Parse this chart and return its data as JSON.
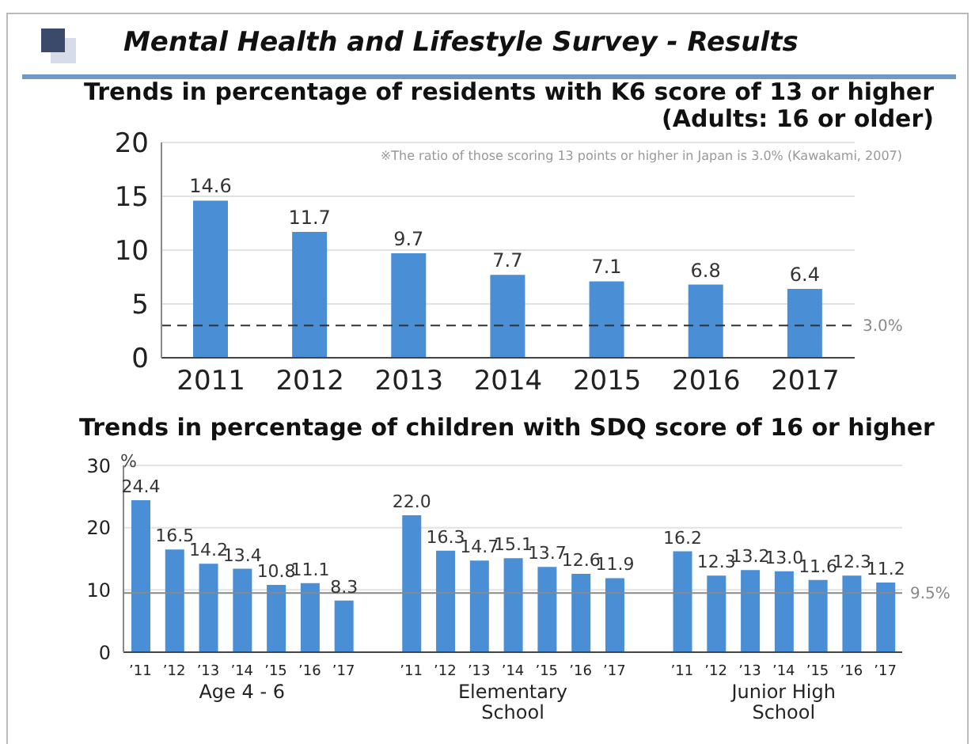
{
  "chart_data": [
    {
      "type": "bar",
      "title": "Mental Health and Lifestyle Survey - Results",
      "subtitle": "Trends in percentage of residents with K6 score of 13 or higher (Adults: 16 or older)",
      "categories": [
        "2011",
        "2012",
        "2013",
        "2014",
        "2015",
        "2016",
        "2017"
      ],
      "values": [
        14.6,
        11.7,
        9.7,
        7.7,
        7.1,
        6.8,
        6.4
      ],
      "color": "#4a8fd6",
      "ylim": [
        0,
        20
      ],
      "yticks": [
        0,
        5,
        10,
        15,
        20
      ],
      "grid": "y",
      "data_labels": true,
      "ref_lines": [
        {
          "axis": "y",
          "value": 3.0,
          "label": "3.0%",
          "color": "#333333",
          "line_style": "dashed"
        }
      ],
      "annotations": [
        "※The ratio of those scoring 13 points or higher in Japan is 3.0% (Kawakami, 2007)"
      ]
    },
    {
      "type": "bar",
      "title": "Trends in percentage of children with SDQ score of 16 or higher",
      "ylabel": "%",
      "categories": [
        "’11",
        "’12",
        "’13",
        "’14",
        "’15",
        "’16",
        "’17",
        null,
        "’11",
        "’12",
        "’13",
        "’14",
        "’15",
        "’16",
        "’17",
        null,
        "’11",
        "’12",
        "’13",
        "’14",
        "’15",
        "’16",
        "’17"
      ],
      "values": [
        24.4,
        16.5,
        14.2,
        13.4,
        10.8,
        11.1,
        8.3,
        null,
        22.0,
        16.3,
        14.7,
        15.1,
        13.7,
        12.6,
        11.9,
        null,
        16.2,
        12.3,
        13.2,
        13.0,
        11.6,
        12.3,
        11.2
      ],
      "color": "#4a8fd6",
      "ylim": [
        0,
        30
      ],
      "yticks": [
        0,
        10,
        20,
        30
      ],
      "grid": "y",
      "value_labels": [
        "24.4",
        "16.5",
        "14.2",
        "13.4",
        "10.8",
        "11.1",
        "8.3",
        null,
        "22.0",
        "16.3",
        "14.7",
        "15.1",
        "13.7",
        "12.6",
        "11.9",
        null,
        "16.2",
        "12.3",
        "13.2",
        "13.0",
        "11.6",
        "12.3",
        "11.2"
      ],
      "ref_lines": [
        {
          "axis": "y",
          "value": 9.5,
          "label": "9.5%",
          "color": "#888888",
          "line_style": "solid"
        }
      ],
      "annotations": [
        "Age 4 - 6",
        "Elementary School",
        "Junior High School"
      ]
    }
  ]
}
